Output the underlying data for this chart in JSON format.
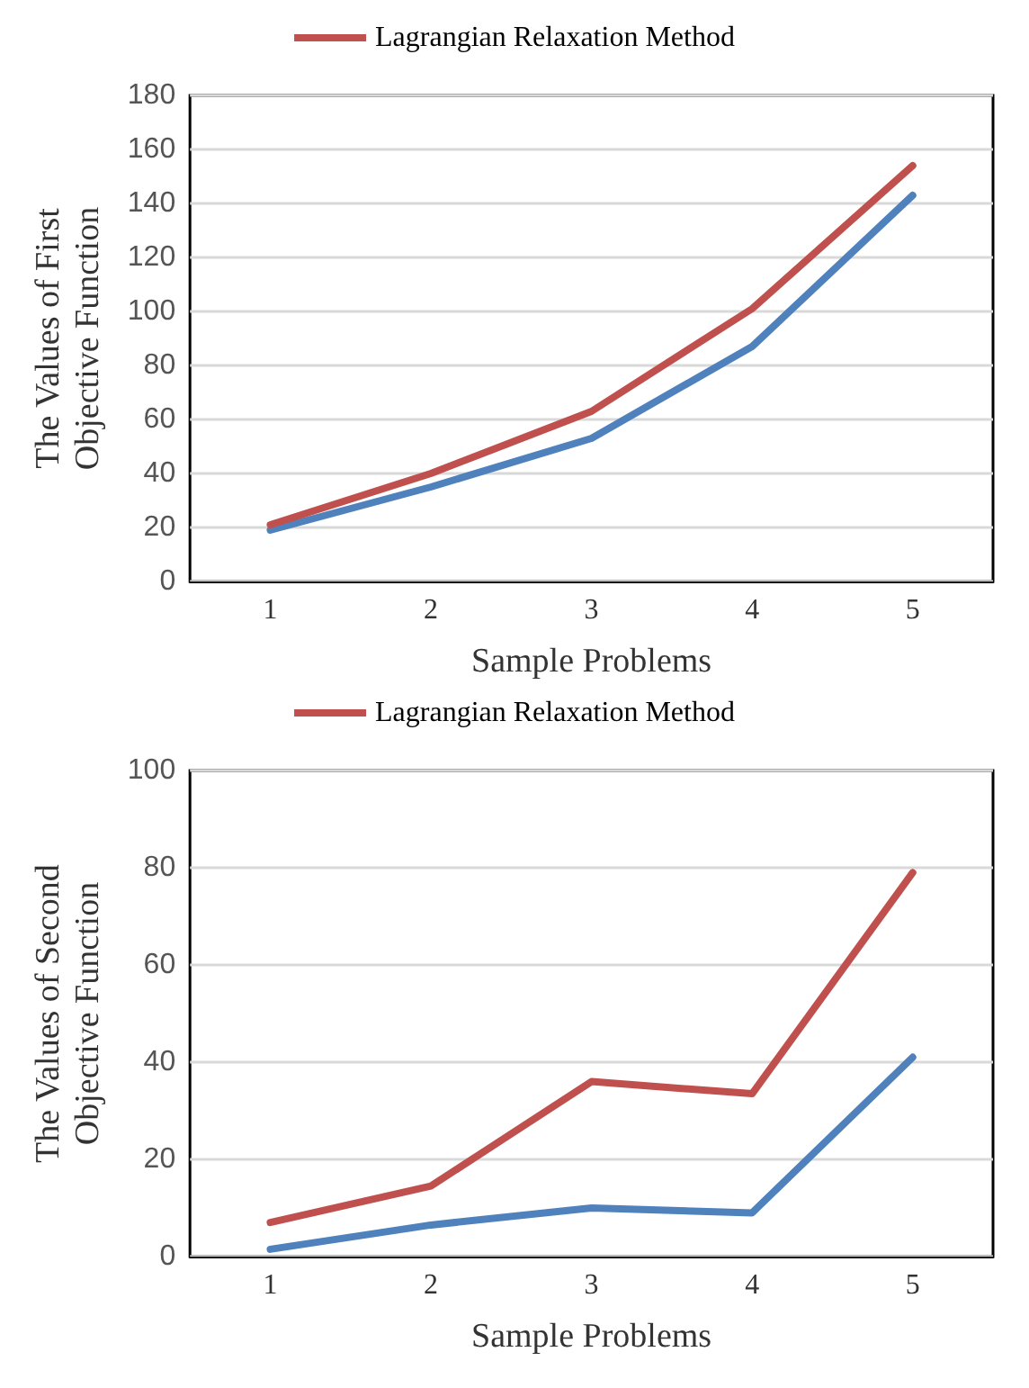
{
  "chart_data": [
    {
      "type": "line",
      "xlabel": "Sample Problems",
      "ylabel": "The Values of First Objective Function",
      "categories": [
        "1",
        "2",
        "3",
        "4",
        "5"
      ],
      "ylim": [
        0,
        180
      ],
      "yticks": [
        0,
        20,
        40,
        60,
        80,
        100,
        120,
        140,
        160,
        180
      ],
      "grid": "y",
      "legend": "top",
      "marker": "none",
      "line_style": "solid",
      "series": [
        {
          "color": "#4f81bd",
          "values": [
            19,
            35,
            53,
            87,
            143
          ]
        },
        {
          "name": "Lagrangian Relaxation Method",
          "color": "#c0504d",
          "values": [
            21,
            40,
            63,
            101,
            154
          ]
        }
      ]
    },
    {
      "type": "line",
      "xlabel": "Sample Problems",
      "ylabel": "The Values of Second Objective Function",
      "categories": [
        "1",
        "2",
        "3",
        "4",
        "5"
      ],
      "ylim": [
        0,
        100
      ],
      "yticks": [
        0,
        20,
        40,
        60,
        80,
        100
      ],
      "grid": "y",
      "legend": "top",
      "marker": "none",
      "line_style": "solid",
      "series": [
        {
          "color": "#4f81bd",
          "values": [
            1.5,
            6.5,
            10,
            9,
            41
          ]
        },
        {
          "name": "Lagrangian Relaxation Method",
          "color": "#c0504d",
          "values": [
            7,
            14.5,
            36,
            33.5,
            79
          ]
        }
      ]
    }
  ]
}
